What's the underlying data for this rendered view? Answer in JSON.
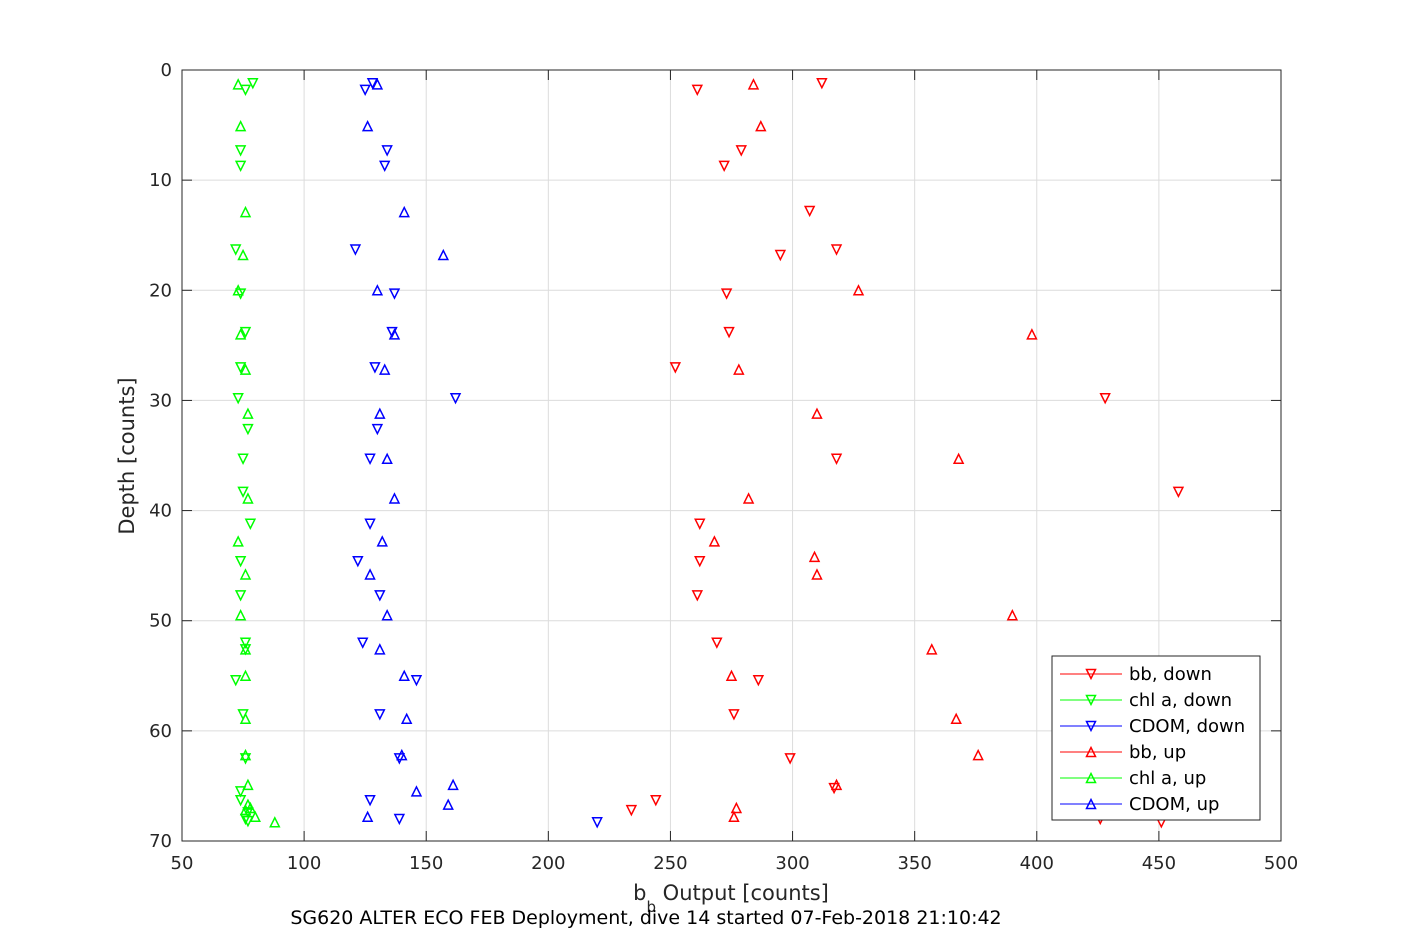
{
  "chart_data": {
    "type": "scatter",
    "xlabel_main": "b",
    "xlabel_sub": "b",
    "xlabel_rest": " Output [counts]",
    "ylabel": "Depth [counts]",
    "caption": "SG620 ALTER ECO FEB Deployment, dive 14 started 07-Feb-2018 21:10:42",
    "xlim": [
      50,
      500
    ],
    "ylim": [
      0,
      70
    ],
    "y_reversed": true,
    "grid": true,
    "legend_position": "bottom-right",
    "xticks": [
      "50",
      "100",
      "150",
      "200",
      "250",
      "300",
      "350",
      "400",
      "450",
      "500"
    ],
    "yticks": [
      "0",
      "10",
      "20",
      "30",
      "40",
      "50",
      "60",
      "70"
    ],
    "series": [
      {
        "name": "bb, down",
        "color": "#ff0000",
        "marker": "triangle-down",
        "x": [
          312,
          261,
          279,
          272,
          307,
          318,
          295,
          273,
          274,
          252,
          428,
          318,
          458,
          262,
          262,
          261,
          269,
          286,
          276,
          299,
          317,
          244,
          234,
          451,
          426
        ],
        "y": [
          1.2,
          1.8,
          7.3,
          8.7,
          12.8,
          16.3,
          16.8,
          20.3,
          23.8,
          27,
          29.8,
          35.3,
          38.3,
          41.2,
          44.6,
          47.7,
          52,
          55.4,
          58.5,
          62.5,
          65.2,
          66.3,
          67.2,
          68.3,
          68
        ]
      },
      {
        "name": "chl a, down",
        "color": "#00ff00",
        "marker": "triangle-down",
        "x": [
          79,
          76,
          74,
          74,
          72,
          74,
          76,
          74,
          73,
          75,
          77,
          75,
          76,
          78,
          74,
          74,
          76,
          72,
          75,
          76,
          74,
          74,
          77,
          76,
          77
        ],
        "y": [
          1.2,
          1.8,
          7.3,
          8.7,
          16.3,
          20.3,
          23.8,
          27,
          29.8,
          35.3,
          32.6,
          38.3,
          52,
          41.2,
          44.6,
          47.7,
          52.6,
          55.4,
          58.5,
          62.5,
          65.5,
          66.3,
          67.4,
          68,
          68.2
        ]
      },
      {
        "name": "CDOM, down",
        "color": "#0000ff",
        "marker": "triangle-down",
        "x": [
          128,
          125,
          134,
          133,
          121,
          137,
          136,
          129,
          162,
          130,
          127,
          127,
          122,
          131,
          124,
          146,
          131,
          139,
          127,
          139,
          220
        ],
        "y": [
          1.2,
          1.8,
          7.3,
          8.7,
          16.3,
          20.3,
          23.8,
          27,
          29.8,
          32.6,
          35.3,
          41.2,
          44.6,
          47.7,
          52,
          55.4,
          58.5,
          62.5,
          66.3,
          68,
          68.3
        ]
      },
      {
        "name": "bb, up",
        "color": "#ff0000",
        "marker": "triangle-up",
        "x": [
          284,
          287,
          327,
          398,
          278,
          310,
          368,
          282,
          268,
          310,
          390,
          357,
          275,
          367,
          376,
          318,
          277,
          276,
          309
        ],
        "y": [
          1.3,
          5.1,
          20,
          24,
          27.2,
          31.2,
          35.3,
          38.9,
          42.8,
          45.8,
          49.5,
          52.6,
          55,
          58.9,
          62.2,
          64.9,
          67,
          67.8,
          44.2
        ]
      },
      {
        "name": "chl a, up",
        "color": "#00ff00",
        "marker": "triangle-up",
        "x": [
          73,
          74,
          76,
          75,
          73,
          74,
          76,
          77,
          77,
          73,
          76,
          74,
          76,
          76,
          76,
          76,
          77,
          77,
          76,
          78,
          80,
          88
        ],
        "y": [
          1.3,
          5.1,
          12.9,
          16.8,
          20,
          24,
          27.2,
          31.2,
          38.9,
          42.8,
          45.8,
          49.5,
          52.6,
          55,
          58.9,
          62.2,
          64.9,
          66.7,
          67.2,
          67,
          67.8,
          68.3
        ]
      },
      {
        "name": "CDOM, up",
        "color": "#0000ff",
        "marker": "triangle-up",
        "x": [
          130,
          126,
          141,
          157,
          130,
          137,
          133,
          131,
          134,
          137,
          132,
          127,
          134,
          131,
          141,
          142,
          140,
          161,
          146,
          159,
          126
        ],
        "y": [
          1.3,
          5.1,
          12.9,
          16.8,
          20,
          24,
          27.2,
          31.2,
          35.3,
          38.9,
          42.8,
          45.8,
          49.5,
          52.6,
          55,
          58.9,
          62.2,
          64.9,
          65.5,
          66.7,
          67.8
        ]
      }
    ]
  }
}
